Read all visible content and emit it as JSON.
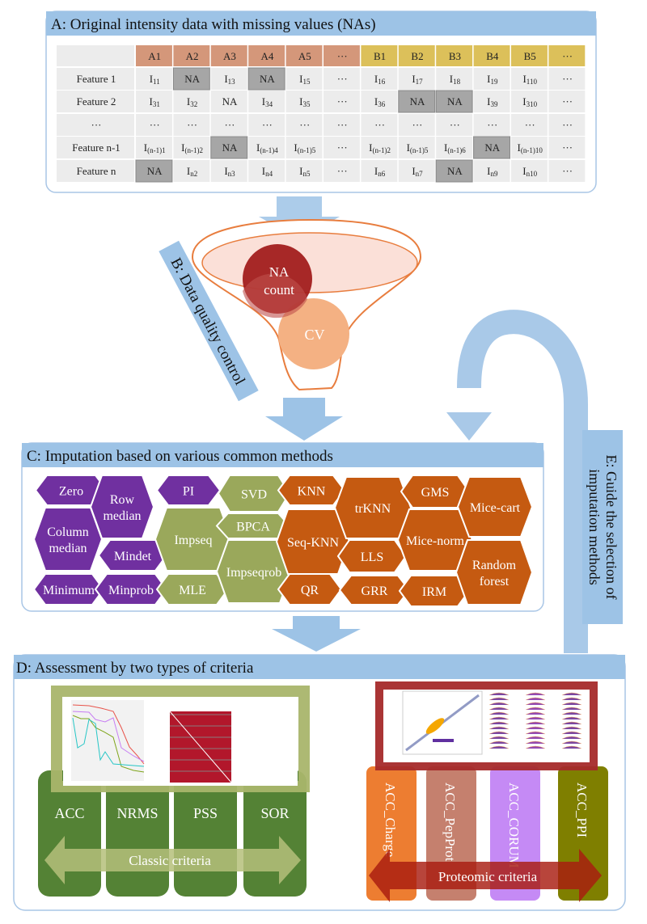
{
  "panel_a": {
    "title": "A: Original intensity data with missing values (NAs)",
    "header_a": [
      "A1",
      "A2",
      "A3",
      "A4",
      "A5",
      "···"
    ],
    "header_b": [
      "B1",
      "B2",
      "B3",
      "B4",
      "B5",
      "···"
    ],
    "header_a_color": "#d4977a",
    "header_b_color": "#dcc05a",
    "rows": [
      {
        "label": "Feature 1",
        "cells": [
          {
            "v": "I",
            "sub": "11"
          },
          {
            "v": "NA",
            "shaded": true
          },
          {
            "v": "I",
            "sub": "13"
          },
          {
            "v": "NA",
            "shaded": true
          },
          {
            "v": "I",
            "sub": "15"
          },
          {
            "v": "···"
          },
          {
            "v": "I",
            "sub": "16"
          },
          {
            "v": "I",
            "sub": "17"
          },
          {
            "v": "I",
            "sub": "18"
          },
          {
            "v": "I",
            "sub": "19"
          },
          {
            "v": "I",
            "sub": "110"
          },
          {
            "v": "···"
          }
        ]
      },
      {
        "label": "Feature 2",
        "cells": [
          {
            "v": "I",
            "sub": "31"
          },
          {
            "v": "I",
            "sub": "32"
          },
          {
            "v": "NA"
          },
          {
            "v": "I",
            "sub": "34"
          },
          {
            "v": "I",
            "sub": "35"
          },
          {
            "v": "···"
          },
          {
            "v": "I",
            "sub": "36"
          },
          {
            "v": "NA",
            "shaded": true
          },
          {
            "v": "NA",
            "shaded": true
          },
          {
            "v": "I",
            "sub": "39"
          },
          {
            "v": "I",
            "sub": "310"
          },
          {
            "v": "···"
          }
        ]
      },
      {
        "label": "···",
        "cells": [
          {
            "v": "···"
          },
          {
            "v": "···"
          },
          {
            "v": "···"
          },
          {
            "v": "···"
          },
          {
            "v": "···"
          },
          {
            "v": "···"
          },
          {
            "v": "···"
          },
          {
            "v": "···"
          },
          {
            "v": "···"
          },
          {
            "v": "···"
          },
          {
            "v": "···"
          },
          {
            "v": "···"
          }
        ]
      },
      {
        "label": "Feature n-1",
        "cells": [
          {
            "v": "I",
            "sub": "(n-1)1"
          },
          {
            "v": "I",
            "sub": "(n-1)2"
          },
          {
            "v": "NA",
            "shaded": true
          },
          {
            "v": "I",
            "sub": "(n-1)4"
          },
          {
            "v": "I",
            "sub": "(n-1)5"
          },
          {
            "v": "···"
          },
          {
            "v": "I",
            "sub": "(n-1)2"
          },
          {
            "v": "I",
            "sub": "(n-1)5"
          },
          {
            "v": "I",
            "sub": "(n-1)6"
          },
          {
            "v": "NA",
            "shaded": true
          },
          {
            "v": "I",
            "sub": "(n-1)10"
          },
          {
            "v": "···"
          }
        ]
      },
      {
        "label": "Feature n",
        "cells": [
          {
            "v": "NA",
            "shaded": true
          },
          {
            "v": "I",
            "sub": "n2"
          },
          {
            "v": "I",
            "sub": "n3"
          },
          {
            "v": "I",
            "sub": "n4"
          },
          {
            "v": "I",
            "sub": "n5"
          },
          {
            "v": "···"
          },
          {
            "v": "I",
            "sub": "n6"
          },
          {
            "v": "I",
            "sub": "n7"
          },
          {
            "v": "NA",
            "shaded": true
          },
          {
            "v": "I",
            "sub": "n9"
          },
          {
            "v": "I",
            "sub": "n10"
          },
          {
            "v": "···"
          }
        ]
      }
    ]
  },
  "panel_b": {
    "title": "B: Data quality control",
    "na_count_line1": "NA",
    "na_count_line2": "count",
    "cv": "CV"
  },
  "panel_c": {
    "title": "C: Imputation based on various common methods",
    "colors": {
      "purple": "#7030a0",
      "olive": "#9aa85b",
      "orange": "#c55a11"
    },
    "methods": [
      {
        "lines": [
          "Zero"
        ],
        "group": "purple"
      },
      {
        "lines": [
          "Row",
          "median"
        ],
        "group": "purple"
      },
      {
        "lines": [
          "PI"
        ],
        "group": "purple"
      },
      {
        "lines": [
          "Column",
          "median"
        ],
        "group": "purple"
      },
      {
        "lines": [
          "Mindet"
        ],
        "group": "purple"
      },
      {
        "lines": [
          "Minimum"
        ],
        "group": "purple"
      },
      {
        "lines": [
          "Minprob"
        ],
        "group": "purple"
      },
      {
        "lines": [
          "Impseq"
        ],
        "group": "olive"
      },
      {
        "lines": [
          "MLE"
        ],
        "group": "olive"
      },
      {
        "lines": [
          "SVD"
        ],
        "group": "olive"
      },
      {
        "lines": [
          "BPCA"
        ],
        "group": "olive"
      },
      {
        "lines": [
          "Impseqrob"
        ],
        "group": "olive"
      },
      {
        "lines": [
          "KNN"
        ],
        "group": "orange"
      },
      {
        "lines": [
          "Seq-KNN"
        ],
        "group": "orange"
      },
      {
        "lines": [
          "QR"
        ],
        "group": "orange"
      },
      {
        "lines": [
          "trKNN"
        ],
        "group": "orange"
      },
      {
        "lines": [
          "LLS"
        ],
        "group": "orange"
      },
      {
        "lines": [
          "GRR"
        ],
        "group": "orange"
      },
      {
        "lines": [
          "GMS"
        ],
        "group": "orange"
      },
      {
        "lines": [
          "Mice-norm"
        ],
        "group": "orange"
      },
      {
        "lines": [
          "IRM"
        ],
        "group": "orange"
      },
      {
        "lines": [
          "Mice-cart"
        ],
        "group": "orange"
      },
      {
        "lines": [
          "Random",
          "forest"
        ],
        "group": "orange"
      }
    ]
  },
  "panel_d": {
    "title": "D: Assessment by two types of criteria",
    "classic": [
      "ACC",
      "NRMS",
      "PSS",
      "SOR"
    ],
    "classic_label": "Classic criteria",
    "proteomic": [
      {
        "label": "ACC_Charge",
        "color": "#ed7d31"
      },
      {
        "label": "ACC_PepProt",
        "color": "#c5806e"
      },
      {
        "label": "ACC_CORUM",
        "color": "#c58af5"
      },
      {
        "label": "ACC_PPI",
        "color": "#7f7f00"
      }
    ],
    "proteomic_label": "Proteomic criteria"
  },
  "panel_e": {
    "line1": "E: Guide the selection of",
    "line2": "imputation methods"
  }
}
